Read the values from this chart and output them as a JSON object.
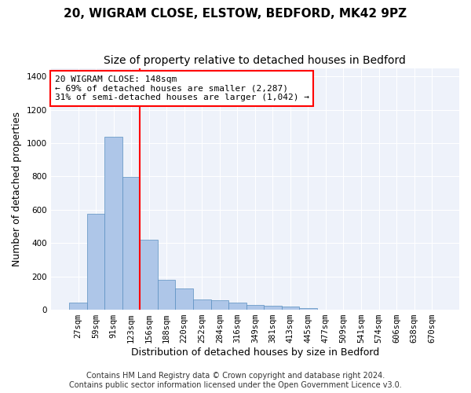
{
  "title1": "20, WIGRAM CLOSE, ELSTOW, BEDFORD, MK42 9PZ",
  "title2": "Size of property relative to detached houses in Bedford",
  "xlabel": "Distribution of detached houses by size in Bedford",
  "ylabel": "Number of detached properties",
  "bar_values": [
    45,
    575,
    1040,
    795,
    420,
    178,
    128,
    60,
    58,
    45,
    28,
    26,
    20,
    12,
    0,
    0,
    0,
    0,
    0,
    0,
    0
  ],
  "x_labels": [
    "27sqm",
    "59sqm",
    "91sqm",
    "123sqm",
    "156sqm",
    "188sqm",
    "220sqm",
    "252sqm",
    "284sqm",
    "316sqm",
    "349sqm",
    "381sqm",
    "413sqm",
    "445sqm",
    "477sqm",
    "509sqm",
    "541sqm",
    "574sqm",
    "606sqm",
    "638sqm",
    "670sqm"
  ],
  "bar_color": "#aec6e8",
  "bar_edge_color": "#5a8fc0",
  "vline_x": 3.5,
  "vline_color": "red",
  "annotation_text": "20 WIGRAM CLOSE: 148sqm\n← 69% of detached houses are smaller (2,287)\n31% of semi-detached houses are larger (1,042) →",
  "annotation_box_color": "white",
  "annotation_box_edge_color": "red",
  "ylim": [
    0,
    1450
  ],
  "yticks": [
    0,
    200,
    400,
    600,
    800,
    1000,
    1200,
    1400
  ],
  "footnote": "Contains HM Land Registry data © Crown copyright and database right 2024.\nContains public sector information licensed under the Open Government Licence v3.0.",
  "bg_color": "#eef2fa",
  "grid_color": "white",
  "title_fontsize": 11,
  "subtitle_fontsize": 10,
  "axis_label_fontsize": 9,
  "tick_fontsize": 7.5,
  "annotation_fontsize": 8,
  "footnote_fontsize": 7
}
